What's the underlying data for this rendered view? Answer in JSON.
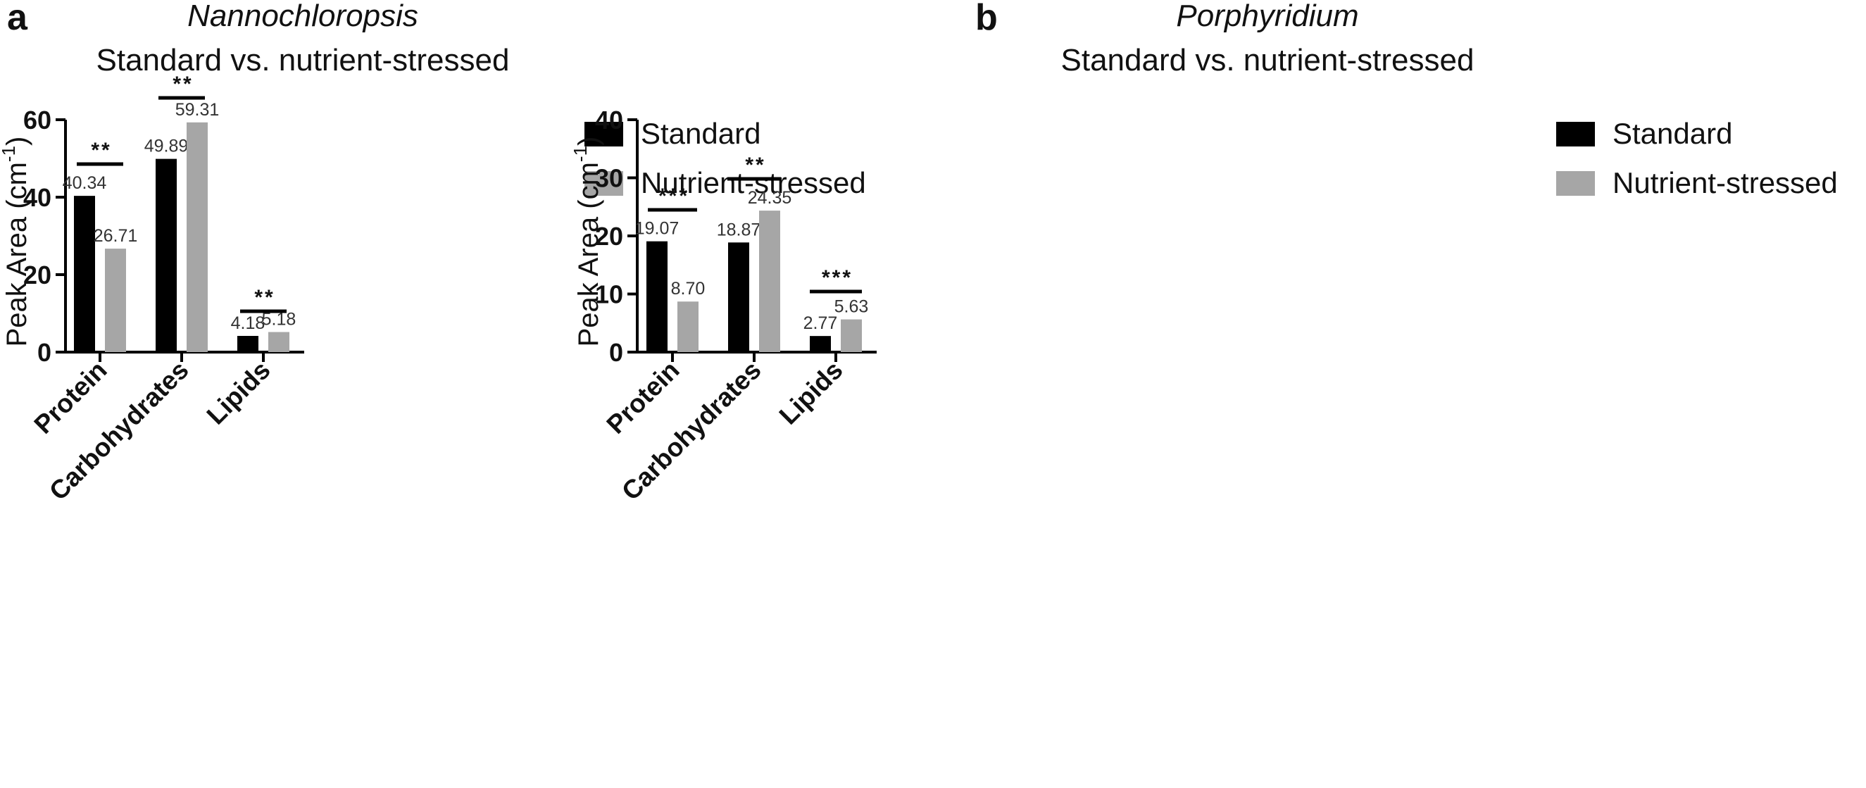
{
  "colors": {
    "standard": "#000000",
    "nutrient_stressed": "#a6a6a6",
    "axis": "#000000"
  },
  "chart_data": [
    {
      "type": "bar",
      "panel_label": "a",
      "title": "Nannochloropsis",
      "subtitle": "Standard vs. nutrient-stressed",
      "ylabel": "Peak Area (cm",
      "ylabel_sup": "-1",
      "ylabel_close": ")",
      "ylim": [
        0,
        60
      ],
      "yticks": [
        "0",
        "20",
        "40",
        "60"
      ],
      "categories": [
        "Protein",
        "Carbohydrates",
        "Lipids"
      ],
      "series": [
        {
          "name": "Standard",
          "values": [
            40.34,
            49.89,
            4.18
          ],
          "labels": [
            "40.34",
            "49.89",
            "4.18"
          ]
        },
        {
          "name": "Nutrient-stressed",
          "values": [
            26.71,
            59.31,
            5.18
          ],
          "labels": [
            "26.71",
            "59.31",
            "5.18"
          ]
        }
      ],
      "significance": [
        "**",
        "**",
        "**"
      ],
      "legend": [
        "Standard",
        "Nutrient-stressed"
      ],
      "legend_position": "right"
    },
    {
      "type": "bar",
      "panel_label": "b",
      "title": "Porphyridium",
      "subtitle": "Standard vs. nutrient-stressed",
      "ylabel": "Peak Area (cm",
      "ylabel_sup": "-1",
      "ylabel_close": ")",
      "ylim": [
        0,
        40
      ],
      "yticks": [
        "0",
        "10",
        "20",
        "30",
        "40"
      ],
      "categories": [
        "Protein",
        "Carbohydrates",
        "Lipids"
      ],
      "series": [
        {
          "name": "Standard",
          "values": [
            19.07,
            18.87,
            2.77
          ],
          "labels": [
            "19.07",
            "18.87",
            "2.77"
          ]
        },
        {
          "name": "Nutrient-stressed",
          "values": [
            8.7,
            24.35,
            5.63
          ],
          "labels": [
            "8.70",
            "24.35",
            "5.63"
          ]
        }
      ],
      "significance": [
        "***",
        "**",
        "***"
      ],
      "legend": [
        "Standard",
        "Nutrient-stressed"
      ],
      "legend_position": "right"
    }
  ]
}
